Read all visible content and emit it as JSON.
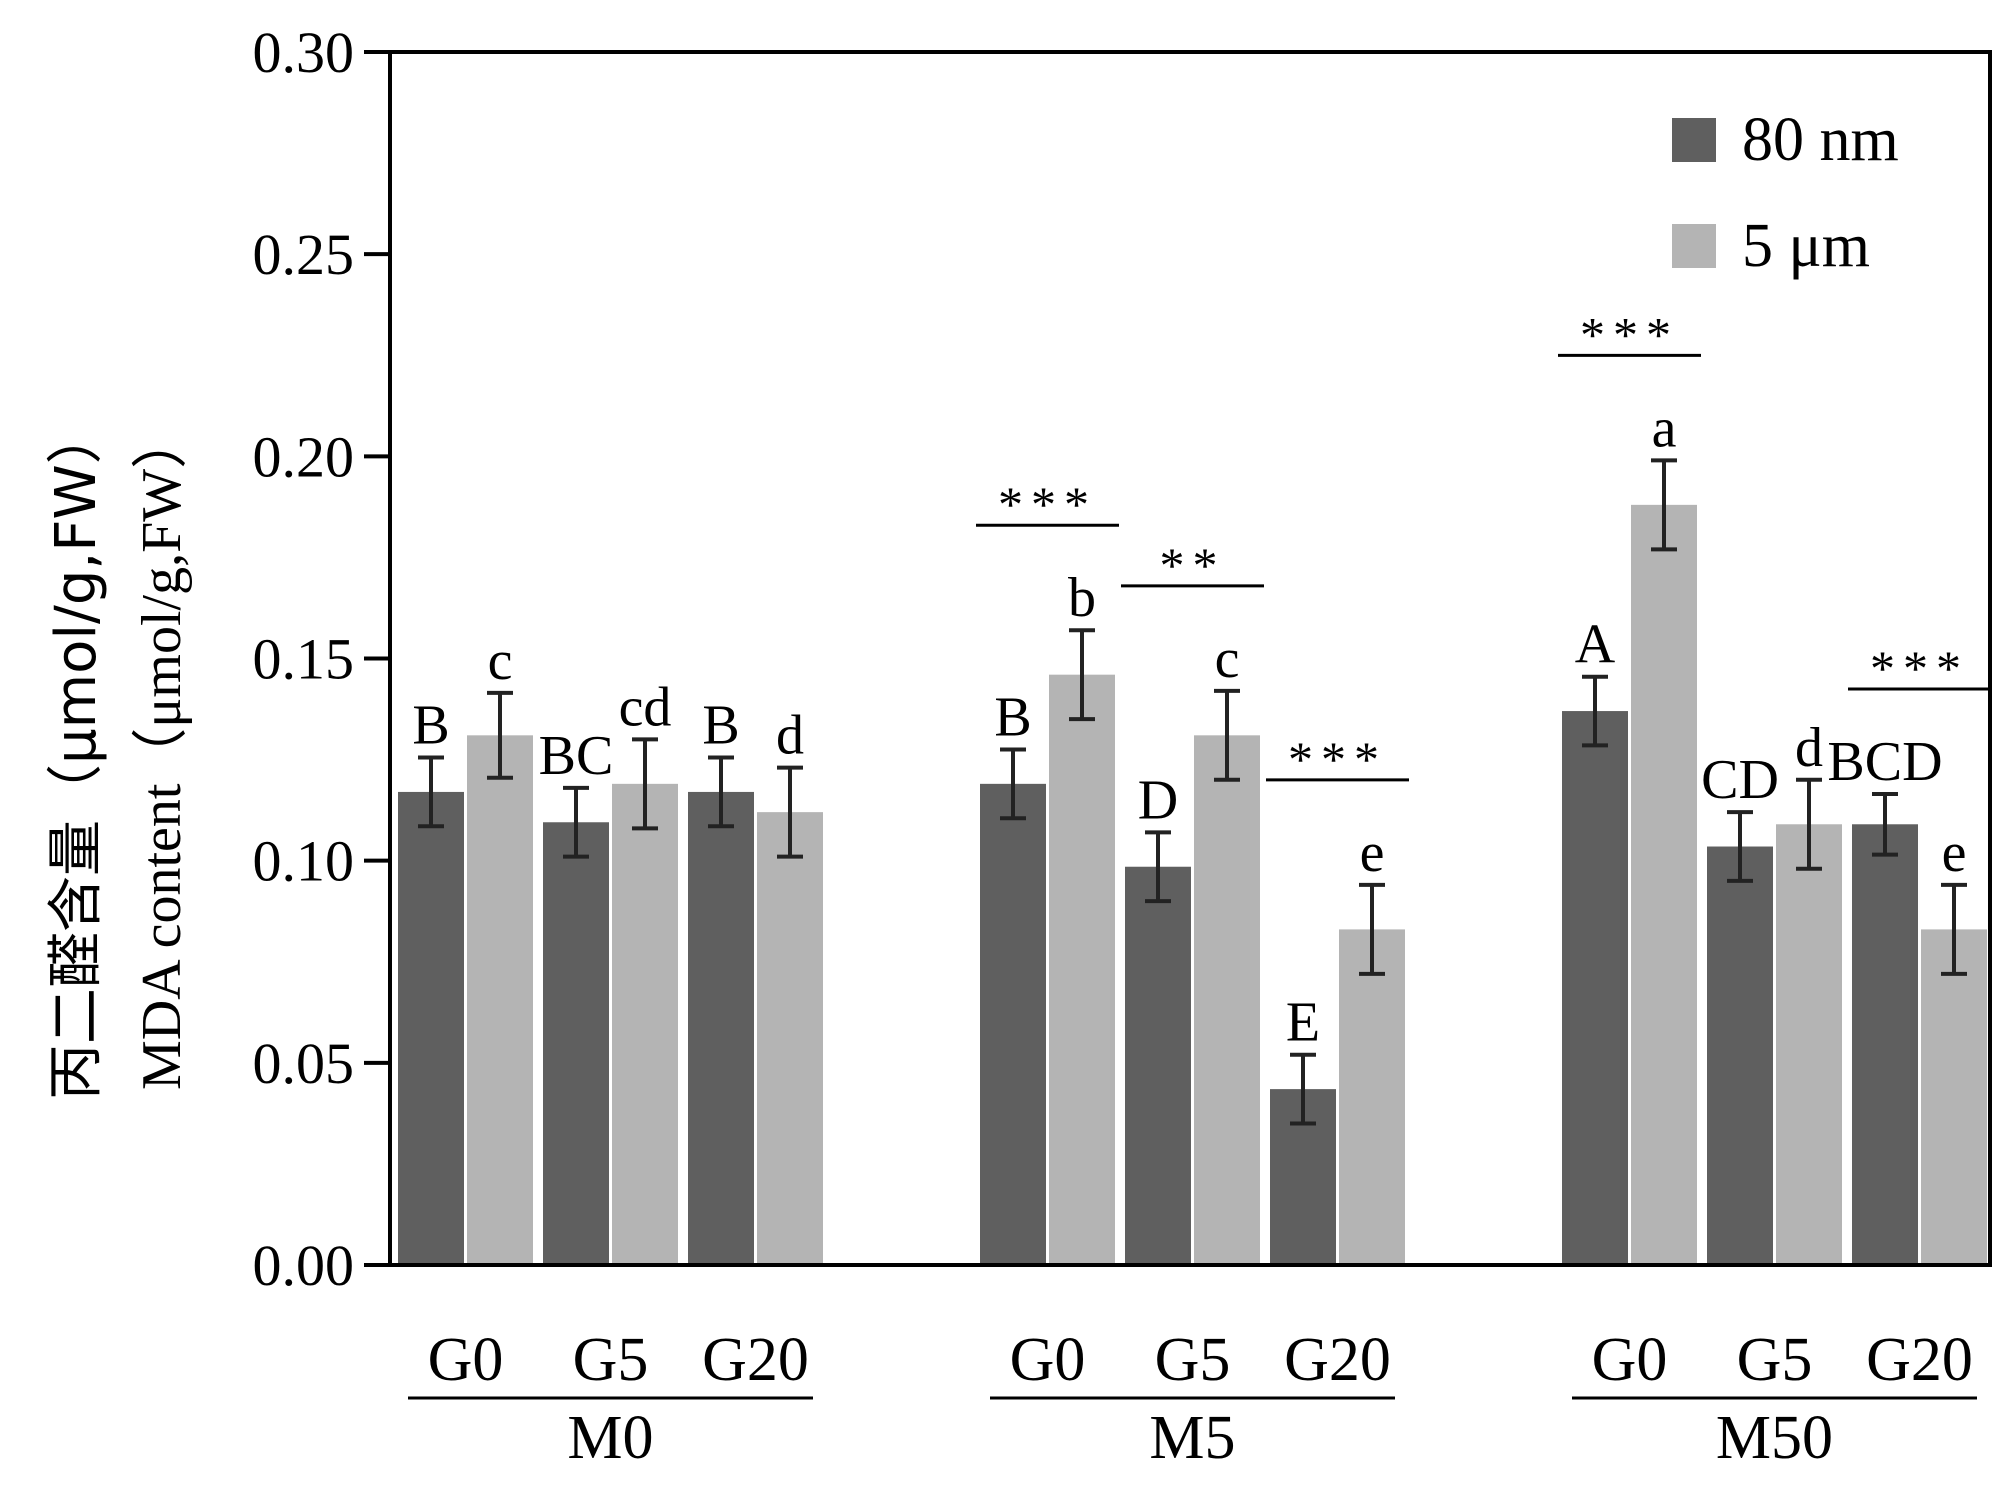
{
  "chart_data": {
    "type": "bar",
    "ylabel_cn": "丙二醛含量（μmol/g,FW）",
    "ylabel_en": "MDA content（μmol/g,FW）",
    "ylim": [
      0,
      0.3
    ],
    "yticks": [
      "0.00",
      "0.05",
      "0.10",
      "0.15",
      "0.20",
      "0.25",
      "0.30"
    ],
    "legend": {
      "position": "top-right",
      "items": [
        {
          "label": "80 nm",
          "color": "#5f5f5f"
        },
        {
          "label": "5 μm",
          "color": "#b4b4b4"
        }
      ]
    },
    "groups": [
      {
        "label": "M0",
        "subgroups": [
          {
            "label": "G0",
            "bars": [
              {
                "series": "80 nm",
                "value": 0.117,
                "err": 0.0085,
                "letter": "B"
              },
              {
                "series": "5 μm",
                "value": 0.131,
                "err": 0.0105,
                "letter": "c"
              }
            ]
          },
          {
            "label": "G5",
            "bars": [
              {
                "series": "80 nm",
                "value": 0.1095,
                "err": 0.0085,
                "letter": "BC"
              },
              {
                "series": "5 μm",
                "value": 0.119,
                "err": 0.011,
                "letter": "cd"
              }
            ]
          },
          {
            "label": "G20",
            "bars": [
              {
                "series": "80 nm",
                "value": 0.117,
                "err": 0.0085,
                "letter": "B"
              },
              {
                "series": "5 μm",
                "value": 0.112,
                "err": 0.011,
                "letter": "d"
              }
            ]
          }
        ]
      },
      {
        "label": "M5",
        "subgroups": [
          {
            "label": "G0",
            "sig": "***",
            "bars": [
              {
                "series": "80 nm",
                "value": 0.119,
                "err": 0.0085,
                "letter": "B"
              },
              {
                "series": "5 μm",
                "value": 0.146,
                "err": 0.011,
                "letter": "b"
              }
            ]
          },
          {
            "label": "G5",
            "sig": "**",
            "bars": [
              {
                "series": "80 nm",
                "value": 0.0985,
                "err": 0.0085,
                "letter": "D"
              },
              {
                "series": "5 μm",
                "value": 0.131,
                "err": 0.011,
                "letter": "c"
              }
            ]
          },
          {
            "label": "G20",
            "sig": "***",
            "bars": [
              {
                "series": "80 nm",
                "value": 0.0435,
                "err": 0.0085,
                "letter": "E"
              },
              {
                "series": "5 μm",
                "value": 0.083,
                "err": 0.011,
                "letter": "e"
              }
            ]
          }
        ]
      },
      {
        "label": "M50",
        "subgroups": [
          {
            "label": "G0",
            "sig": "***",
            "bars": [
              {
                "series": "80 nm",
                "value": 0.137,
                "err": 0.0085,
                "letter": "A"
              },
              {
                "series": "5 μm",
                "value": 0.188,
                "err": 0.011,
                "letter": "a"
              }
            ]
          },
          {
            "label": "G5",
            "bars": [
              {
                "series": "80 nm",
                "value": 0.1035,
                "err": 0.0085,
                "letter": "CD"
              },
              {
                "series": "5 μm",
                "value": 0.109,
                "err": 0.011,
                "letter": "d"
              }
            ]
          },
          {
            "label": "G20",
            "sig": "***",
            "bars": [
              {
                "series": "80 nm",
                "value": 0.109,
                "err": 0.0075,
                "letter": "BCD"
              },
              {
                "series": "5 μm",
                "value": 0.083,
                "err": 0.011,
                "letter": "e"
              }
            ]
          }
        ]
      }
    ]
  }
}
